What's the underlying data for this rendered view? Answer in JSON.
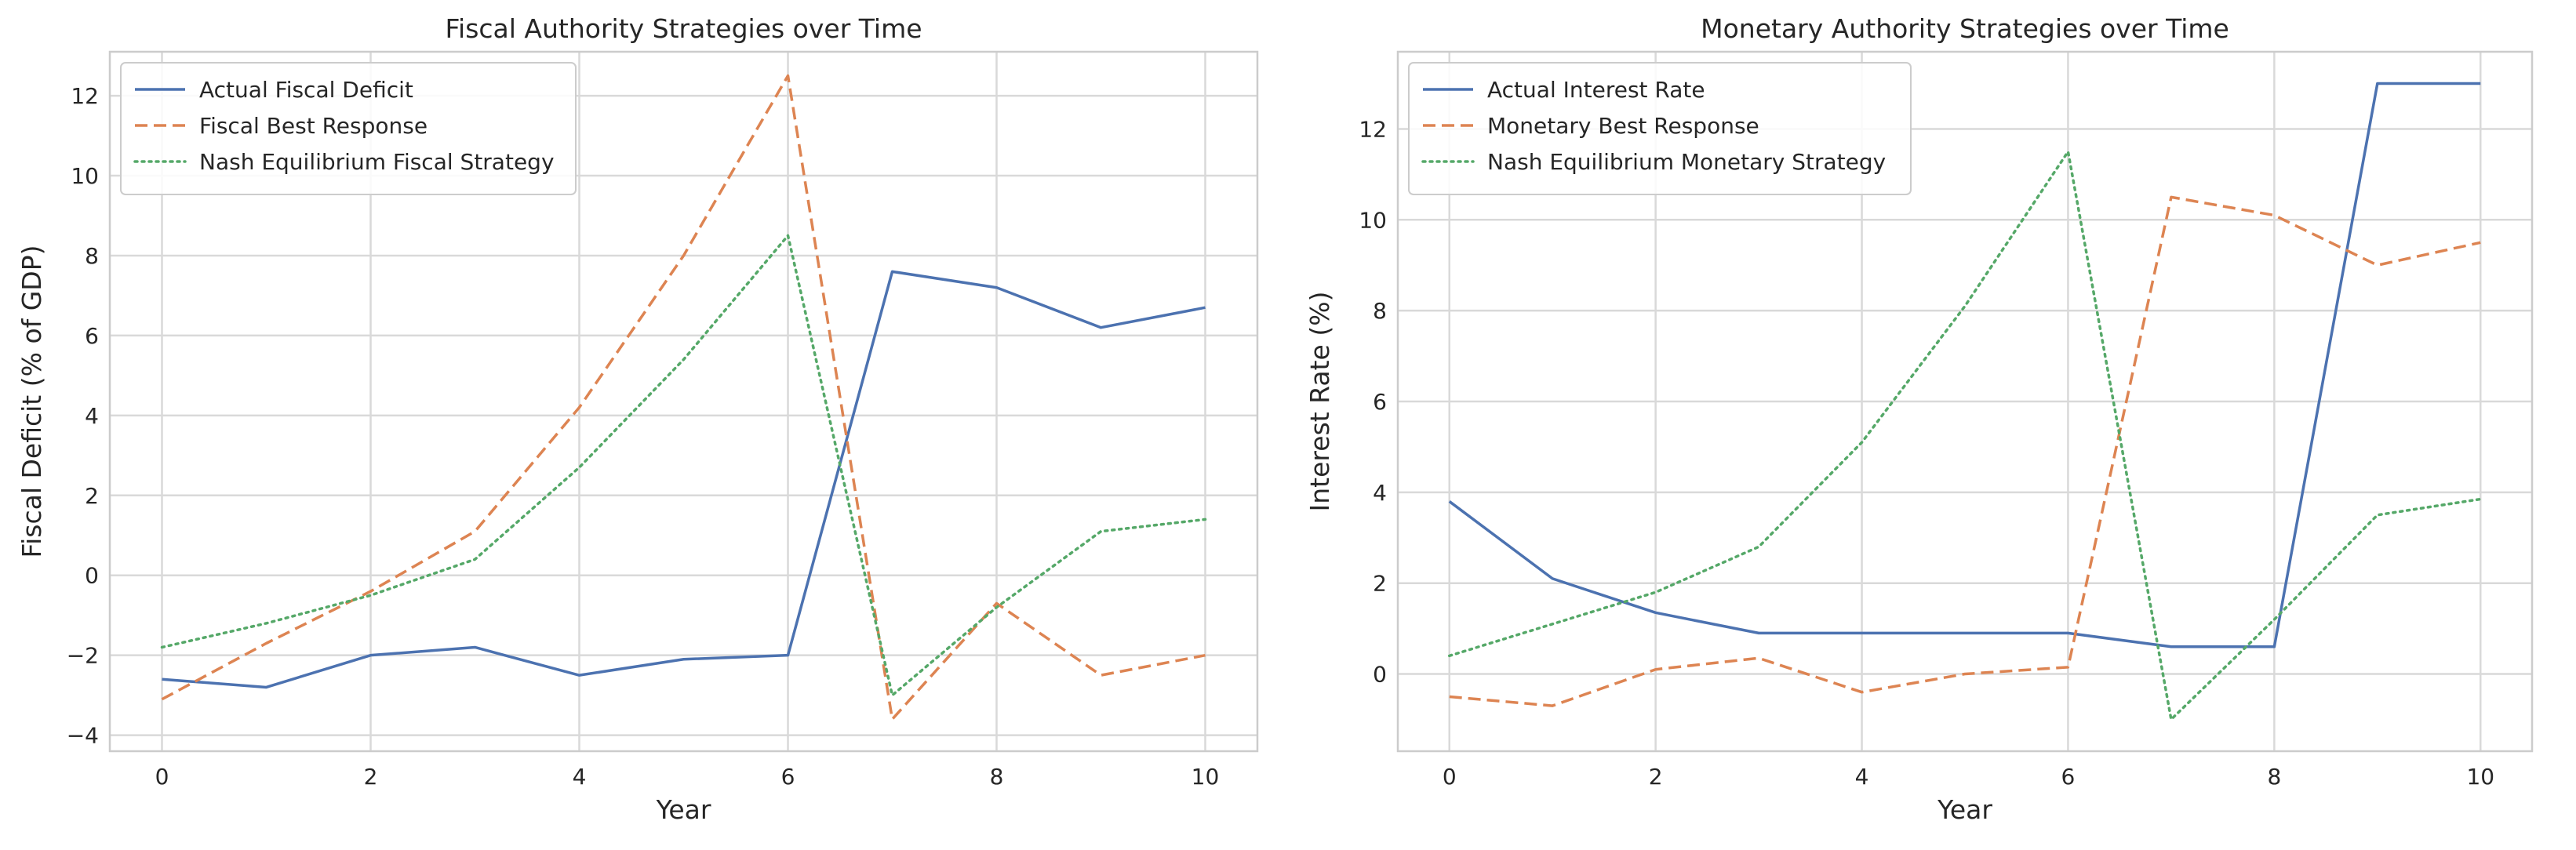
{
  "colors": {
    "actual": "#4c72b0",
    "best_response": "#dd8452",
    "nash": "#55a868"
  },
  "chart_data": [
    {
      "type": "line",
      "title": "Fiscal Authority Strategies over Time",
      "xlabel": "Year",
      "ylabel": "Fiscal Deficit (% of GDP)",
      "xlim": [
        -0.5,
        10.5
      ],
      "ylim": [
        -4.4,
        13.1
      ],
      "xticks": [
        0,
        2,
        4,
        6,
        8,
        10
      ],
      "yticks": [
        -4,
        -2,
        0,
        2,
        4,
        6,
        8,
        10,
        12
      ],
      "ytick_labels": [
        "−4",
        "−2",
        "0",
        "2",
        "4",
        "6",
        "8",
        "10",
        "12"
      ],
      "xtick_labels": [
        "0",
        "2",
        "4",
        "6",
        "8",
        "10"
      ],
      "legend_position": "top-left",
      "x": [
        0,
        1,
        2,
        3,
        4,
        5,
        6,
        7,
        8,
        9,
        10
      ],
      "series": [
        {
          "name": "Actual Fiscal Deficit",
          "style": "solid",
          "color_key": "actual",
          "values": [
            -2.6,
            -2.8,
            -2.0,
            -1.8,
            -2.5,
            -2.1,
            -2.0,
            7.6,
            7.2,
            6.2,
            6.7
          ]
        },
        {
          "name": "Fiscal Best Response",
          "style": "dashed",
          "color_key": "best_response",
          "values": [
            -3.1,
            -1.7,
            -0.4,
            1.1,
            4.2,
            8.0,
            12.5,
            -3.6,
            -0.7,
            -2.5,
            -2.0
          ]
        },
        {
          "name": "Nash Equilibrium Fiscal Strategy",
          "style": "dotted",
          "color_key": "nash",
          "values": [
            -1.8,
            -1.2,
            -0.5,
            0.4,
            2.7,
            5.4,
            8.5,
            -3.0,
            -0.8,
            1.1,
            1.4
          ]
        }
      ]
    },
    {
      "type": "line",
      "title": "Monetary Authority Strategies over Time",
      "xlabel": "Year",
      "ylabel": "Interest Rate (%)",
      "xlim": [
        -0.5,
        10.5
      ],
      "ylim": [
        -1.7,
        13.7
      ],
      "xticks": [
        0,
        2,
        4,
        6,
        8,
        10
      ],
      "yticks": [
        0,
        2,
        4,
        6,
        8,
        10,
        12
      ],
      "ytick_labels": [
        "0",
        "2",
        "4",
        "6",
        "8",
        "10",
        "12"
      ],
      "xtick_labels": [
        "0",
        "2",
        "4",
        "6",
        "8",
        "10"
      ],
      "legend_position": "top-left",
      "x": [
        0,
        1,
        2,
        3,
        4,
        5,
        6,
        7,
        8,
        9,
        10
      ],
      "series": [
        {
          "name": "Actual Interest Rate",
          "style": "solid",
          "color_key": "actual",
          "values": [
            3.8,
            2.1,
            1.35,
            0.9,
            0.9,
            0.9,
            0.9,
            0.6,
            0.6,
            13.0,
            13.0
          ]
        },
        {
          "name": "Monetary Best Response",
          "style": "dashed",
          "color_key": "best_response",
          "values": [
            -0.5,
            -0.7,
            0.1,
            0.35,
            -0.4,
            0.0,
            0.15,
            10.5,
            10.1,
            9.0,
            9.5
          ]
        },
        {
          "name": "Nash Equilibrium Monetary Strategy",
          "style": "dotted",
          "color_key": "nash",
          "values": [
            0.4,
            1.1,
            1.8,
            2.8,
            5.1,
            8.1,
            11.5,
            -1.0,
            1.2,
            3.5,
            3.85
          ]
        }
      ]
    }
  ]
}
